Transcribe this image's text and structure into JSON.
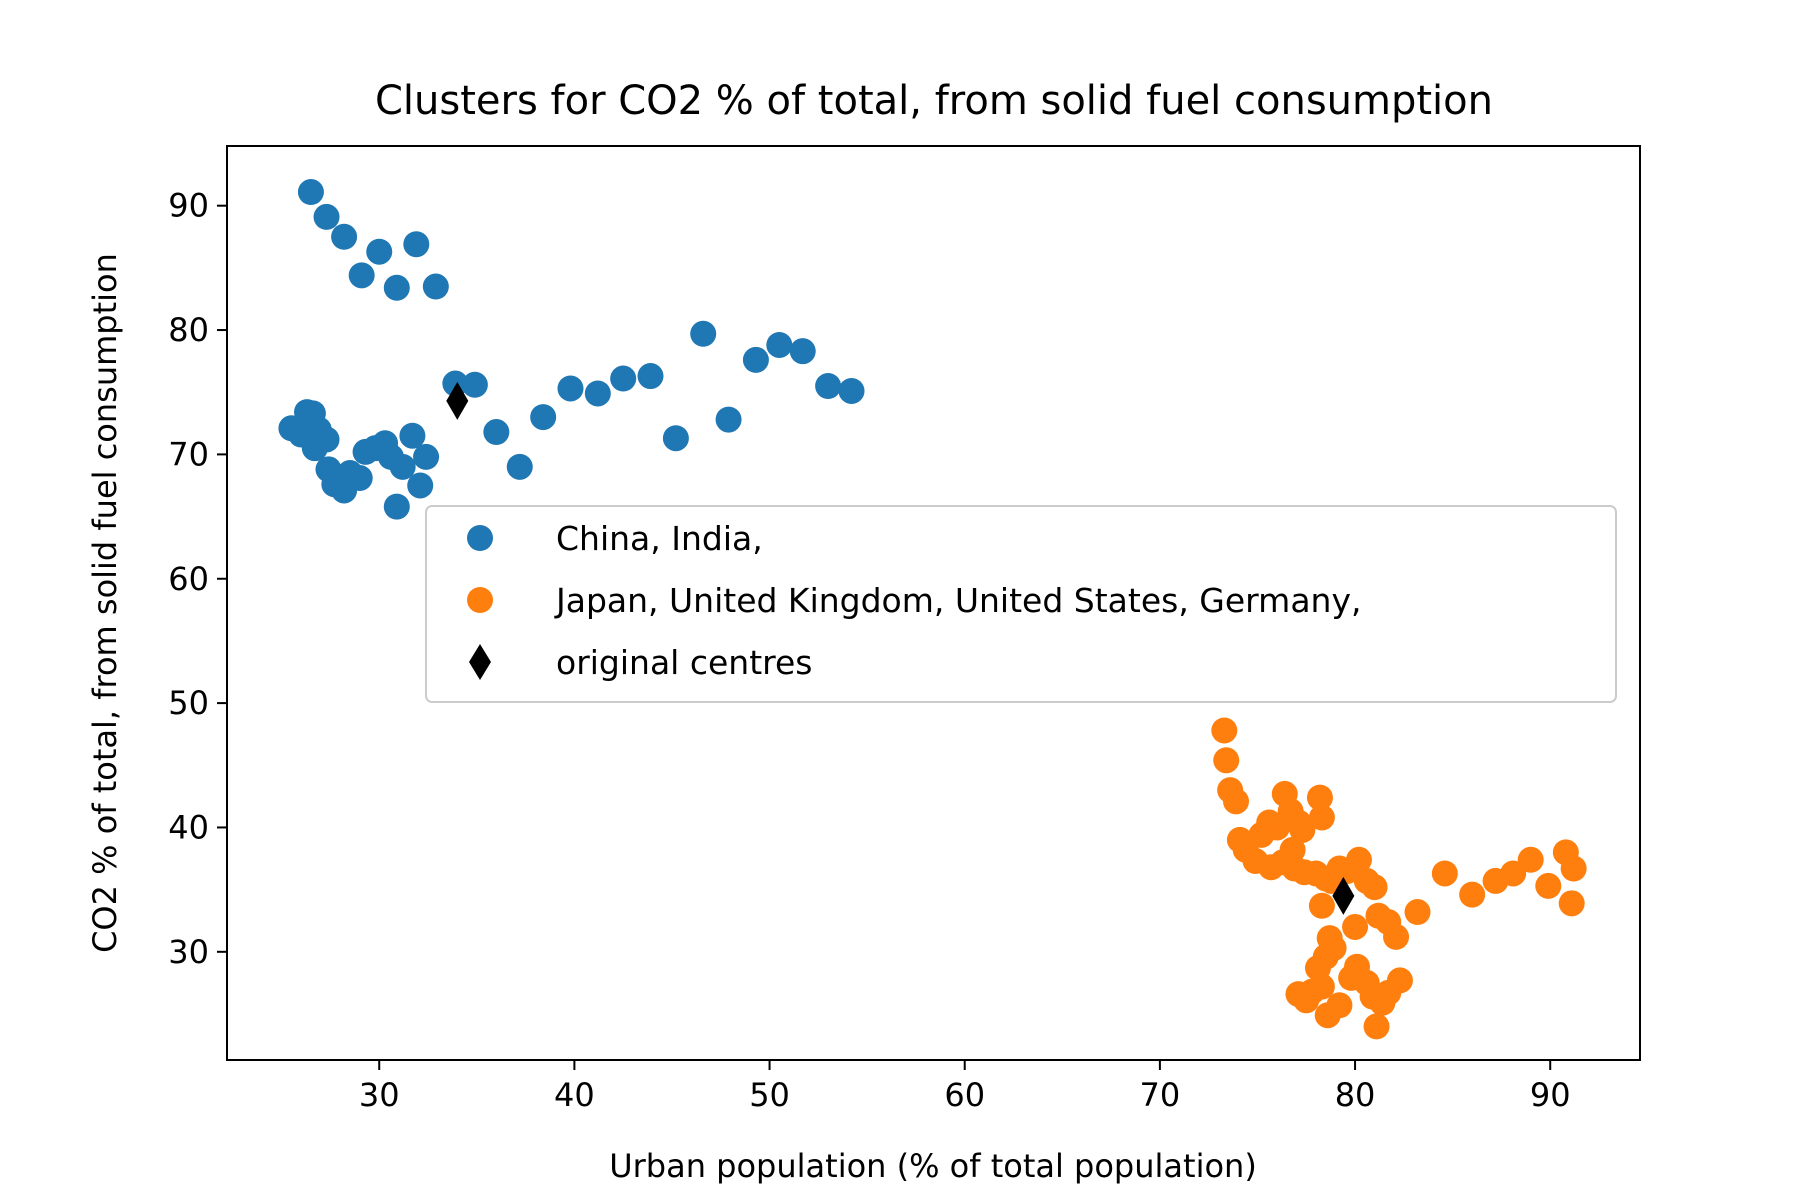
{
  "chart_data": {
    "type": "scatter",
    "title": "Clusters for CO2 % of total, from solid fuel consumption",
    "xlabel": "Urban population (% of total population)",
    "ylabel": "CO2 % of total, from solid fuel consumption",
    "xlim": [
      22.2,
      94.6
    ],
    "ylim": [
      21.3,
      94.8
    ],
    "xticks": [
      30,
      40,
      50,
      60,
      70,
      80,
      90
    ],
    "yticks": [
      30,
      40,
      50,
      60,
      70,
      80,
      90
    ],
    "grid": false,
    "legend_position": "center-right",
    "series": [
      {
        "name": "China, India,",
        "color": "#1f77b4",
        "marker": "circle",
        "points": [
          [
            26.5,
            91.1
          ],
          [
            27.3,
            89.1
          ],
          [
            28.2,
            87.5
          ],
          [
            30.0,
            86.3
          ],
          [
            31.9,
            86.9
          ],
          [
            29.1,
            84.4
          ],
          [
            30.9,
            83.4
          ],
          [
            32.9,
            83.5
          ],
          [
            46.6,
            79.7
          ],
          [
            50.5,
            78.8
          ],
          [
            51.7,
            78.3
          ],
          [
            49.3,
            77.6
          ],
          [
            42.5,
            76.1
          ],
          [
            43.9,
            76.3
          ],
          [
            33.9,
            75.7
          ],
          [
            34.9,
            75.6
          ],
          [
            53.0,
            75.5
          ],
          [
            54.2,
            75.1
          ],
          [
            39.8,
            75.3
          ],
          [
            41.2,
            74.9
          ],
          [
            38.4,
            73.0
          ],
          [
            47.9,
            72.8
          ],
          [
            36.0,
            71.8
          ],
          [
            45.2,
            71.3
          ],
          [
            25.5,
            72.1
          ],
          [
            26.0,
            71.6
          ],
          [
            26.3,
            73.4
          ],
          [
            26.6,
            73.3
          ],
          [
            26.9,
            72.0
          ],
          [
            27.3,
            71.2
          ],
          [
            26.7,
            70.5
          ],
          [
            27.4,
            68.8
          ],
          [
            27.7,
            67.6
          ],
          [
            28.2,
            67.1
          ],
          [
            28.5,
            68.5
          ],
          [
            29.0,
            68.1
          ],
          [
            29.3,
            70.2
          ],
          [
            29.8,
            70.5
          ],
          [
            30.3,
            70.9
          ],
          [
            30.6,
            69.8
          ],
          [
            31.2,
            69.0
          ],
          [
            31.7,
            71.5
          ],
          [
            32.4,
            69.8
          ],
          [
            32.1,
            67.5
          ],
          [
            30.9,
            65.8
          ],
          [
            37.2,
            69.0
          ]
        ]
      },
      {
        "name": "Japan, United Kingdom, United States, Germany,",
        "color": "#ff7f0e",
        "marker": "circle",
        "points": [
          [
            73.3,
            47.8
          ],
          [
            73.4,
            45.4
          ],
          [
            73.6,
            43.0
          ],
          [
            73.9,
            42.1
          ],
          [
            74.1,
            39.0
          ],
          [
            74.4,
            38.2
          ],
          [
            74.9,
            37.3
          ],
          [
            75.2,
            39.4
          ],
          [
            75.6,
            40.4
          ],
          [
            76.0,
            40.0
          ],
          [
            76.4,
            42.7
          ],
          [
            76.7,
            41.3
          ],
          [
            77.1,
            40.4
          ],
          [
            77.3,
            39.8
          ],
          [
            76.8,
            38.2
          ],
          [
            76.3,
            37.2
          ],
          [
            75.7,
            36.8
          ],
          [
            76.9,
            36.7
          ],
          [
            77.4,
            36.4
          ],
          [
            78.2,
            42.4
          ],
          [
            78.3,
            40.8
          ],
          [
            78.0,
            36.3
          ],
          [
            78.5,
            35.9
          ],
          [
            78.8,
            35.7
          ],
          [
            79.2,
            36.7
          ],
          [
            79.6,
            36.5
          ],
          [
            80.2,
            37.4
          ],
          [
            80.6,
            35.7
          ],
          [
            81.0,
            35.2
          ],
          [
            78.3,
            33.7
          ],
          [
            78.7,
            31.1
          ],
          [
            78.9,
            30.3
          ],
          [
            78.5,
            29.6
          ],
          [
            78.1,
            28.7
          ],
          [
            78.3,
            27.2
          ],
          [
            77.8,
            26.8
          ],
          [
            77.5,
            26.1
          ],
          [
            77.1,
            26.6
          ],
          [
            78.6,
            24.9
          ],
          [
            79.2,
            25.7
          ],
          [
            79.8,
            27.9
          ],
          [
            80.1,
            28.8
          ],
          [
            80.6,
            27.5
          ],
          [
            80.9,
            26.4
          ],
          [
            81.1,
            24.0
          ],
          [
            81.4,
            25.9
          ],
          [
            81.7,
            26.7
          ],
          [
            80.0,
            32.0
          ],
          [
            81.2,
            32.9
          ],
          [
            81.7,
            32.4
          ],
          [
            82.1,
            31.2
          ],
          [
            82.3,
            27.7
          ],
          [
            83.2,
            33.2
          ],
          [
            84.6,
            36.3
          ],
          [
            86.0,
            34.6
          ],
          [
            87.2,
            35.7
          ],
          [
            88.1,
            36.3
          ],
          [
            89.0,
            37.4
          ],
          [
            89.9,
            35.3
          ],
          [
            90.8,
            38.0
          ],
          [
            91.2,
            36.7
          ],
          [
            91.1,
            33.9
          ]
        ]
      },
      {
        "name": "original centres",
        "color": "#000000",
        "marker": "diamond",
        "points": [
          [
            34.0,
            74.3
          ],
          [
            79.4,
            34.5
          ]
        ]
      }
    ]
  }
}
